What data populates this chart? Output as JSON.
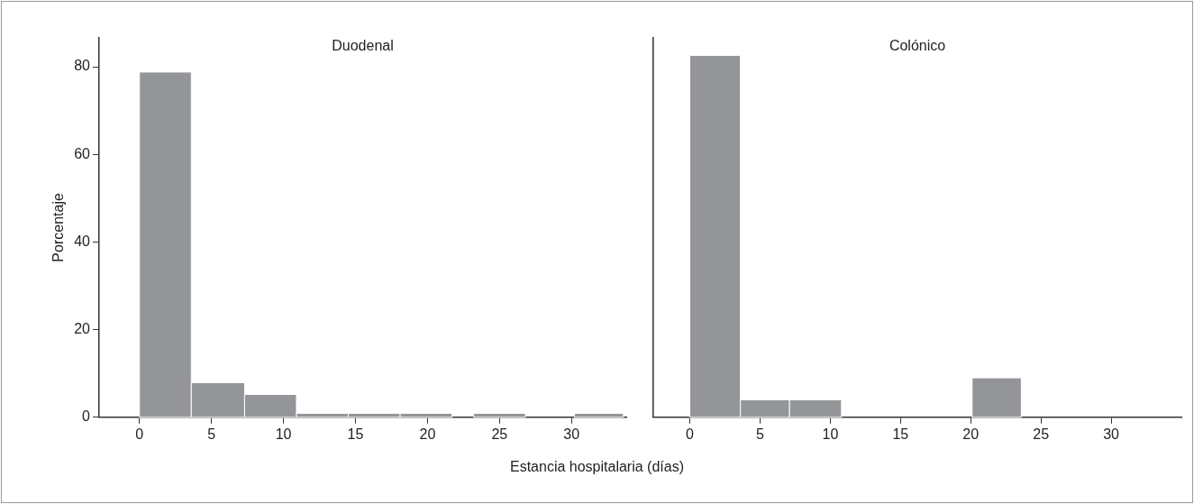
{
  "chart_data": [
    {
      "type": "histogram",
      "title": "Duodenal",
      "ylabel": "Porcentaje",
      "xlabel": "Estancia hospitalaria (días)",
      "bins": [
        0,
        3.6,
        7.3,
        10.9,
        14.5,
        18.1,
        21.7,
        23.2,
        26.8,
        30.2,
        33.6
      ],
      "values": [
        78.8,
        7.9,
        5.2,
        0.9,
        0.9,
        0.9,
        0,
        0.9,
        0,
        0.9
      ],
      "color": "#939598",
      "xlim": [
        -2.8,
        33.8
      ],
      "xticks": [
        0,
        5,
        10,
        15,
        20,
        25,
        30
      ],
      "ylim": [
        0,
        86.6
      ],
      "yticks": [
        0,
        20,
        40,
        60,
        80
      ],
      "grid": false,
      "legend": false
    },
    {
      "type": "histogram",
      "title": "Colónico",
      "bins": [
        0,
        3.6,
        7.1,
        10.8,
        20.1,
        23.6
      ],
      "values": [
        82.6,
        4,
        4,
        0,
        9
      ],
      "color": "#939598",
      "xlim": [
        -2.6,
        35
      ],
      "xticks": [
        0,
        5,
        10,
        15,
        20,
        25,
        30
      ],
      "ylim": [
        0,
        86.6
      ],
      "yticks": [
        0,
        20,
        40,
        60,
        80
      ],
      "tick_labels": "x",
      "grid": false,
      "legend": false
    }
  ]
}
